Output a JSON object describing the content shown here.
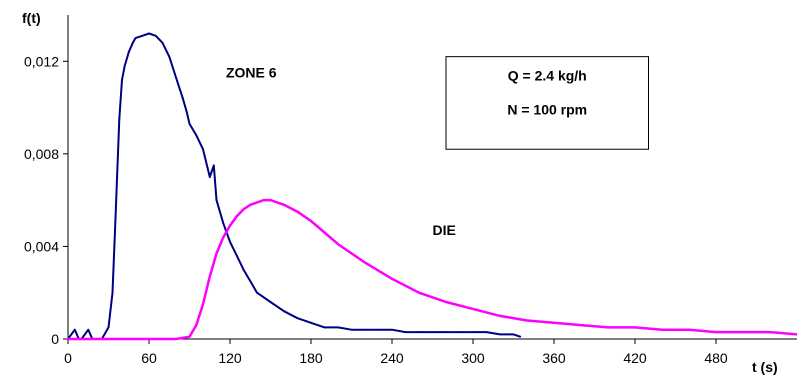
{
  "chart_data": {
    "type": "line",
    "title": "",
    "xlabel": "t (s)",
    "ylabel": "f(t)",
    "xlim": [
      0,
      540
    ],
    "ylim": [
      0,
      0.014
    ],
    "x_ticks": [
      0,
      60,
      120,
      180,
      240,
      300,
      360,
      420,
      480
    ],
    "x_tick_labels": [
      "0",
      "60",
      "120",
      "180",
      "240",
      "300",
      "360",
      "420",
      "480"
    ],
    "y_ticks": [
      0,
      0.004,
      0.008,
      0.012
    ],
    "y_tick_labels": [
      "0",
      "0,004",
      "0,008",
      "0,012"
    ],
    "grid": false,
    "legend": "none",
    "annotations": [
      {
        "text": "ZONE 6",
        "x": 117,
        "y": 0.0113
      },
      {
        "text": "DIE",
        "x": 270,
        "y": 0.0045
      }
    ],
    "parameters_box": {
      "lines": [
        "Q = 2.4 kg/h",
        "N = 100 rpm"
      ],
      "x_range": [
        280,
        430
      ],
      "y_range": [
        0.0082,
        0.0122
      ]
    },
    "series": [
      {
        "color": "#000080",
        "x": [
          0,
          5,
          8,
          10,
          15,
          18,
          20,
          25,
          30,
          33,
          35,
          38,
          40,
          42,
          45,
          48,
          50,
          55,
          60,
          65,
          70,
          75,
          80,
          85,
          88,
          90,
          95,
          100,
          105,
          108,
          110,
          115,
          120,
          125,
          130,
          135,
          140,
          150,
          160,
          170,
          180,
          190,
          200,
          210,
          220,
          230,
          240,
          250,
          260,
          270,
          280,
          290,
          300,
          310,
          320,
          330,
          335
        ],
        "y": [
          0,
          0.0004,
          0,
          0,
          0.0004,
          0,
          0,
          0,
          0.0005,
          0.002,
          0.005,
          0.0095,
          0.0112,
          0.0118,
          0.0124,
          0.0128,
          0.013,
          0.0131,
          0.0132,
          0.0131,
          0.0128,
          0.0122,
          0.0113,
          0.0104,
          0.0098,
          0.0093,
          0.0088,
          0.0082,
          0.007,
          0.0075,
          0.006,
          0.005,
          0.0042,
          0.0036,
          0.003,
          0.0025,
          0.002,
          0.0016,
          0.0012,
          0.0009,
          0.0007,
          0.0005,
          0.0005,
          0.0004,
          0.0004,
          0.0004,
          0.0004,
          0.0003,
          0.0003,
          0.0003,
          0.0003,
          0.0003,
          0.0003,
          0.0003,
          0.0002,
          0.0002,
          0.0001
        ]
      },
      {
        "color": "#ff00ff",
        "x": [
          0,
          80,
          90,
          95,
          100,
          105,
          110,
          115,
          120,
          125,
          130,
          135,
          140,
          145,
          150,
          155,
          160,
          170,
          180,
          190,
          200,
          210,
          220,
          240,
          260,
          280,
          300,
          320,
          340,
          360,
          380,
          400,
          420,
          440,
          460,
          480,
          500,
          520,
          540
        ],
        "y": [
          0,
          0,
          0.0001,
          0.0006,
          0.0015,
          0.0027,
          0.0037,
          0.0044,
          0.0049,
          0.0053,
          0.0056,
          0.0058,
          0.0059,
          0.006,
          0.006,
          0.0059,
          0.0058,
          0.0055,
          0.0051,
          0.0046,
          0.0041,
          0.0037,
          0.0033,
          0.0026,
          0.002,
          0.0016,
          0.0013,
          0.001,
          0.0008,
          0.0007,
          0.0006,
          0.0005,
          0.0005,
          0.0004,
          0.0004,
          0.0003,
          0.0003,
          0.0003,
          0.0002
        ]
      }
    ]
  }
}
